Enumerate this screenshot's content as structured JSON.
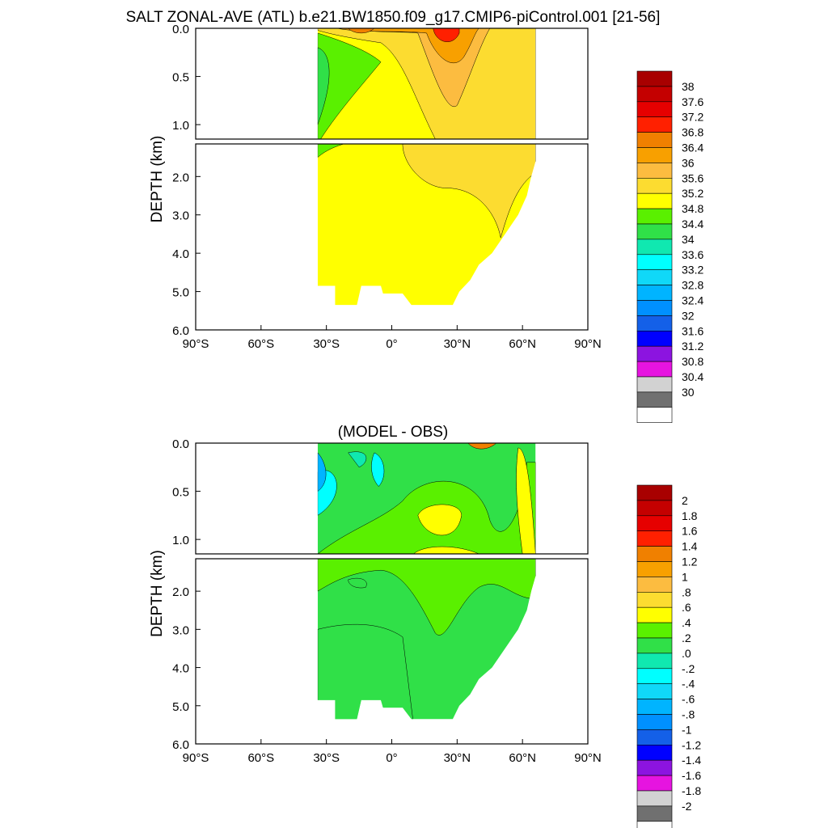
{
  "title": "SALT ZONAL-AVE (ATL) b.e21.BW1850.f09_g17.CMIP6-piControl.001 [21-56]",
  "chart_data": [
    {
      "type": "contour",
      "title": "SALT ZONAL-AVE (ATL) b.e21.BW1850.f09_g17.CMIP6-piControl.001 [21-56]",
      "xlabel": "",
      "ylabel": "DEPTH (km)",
      "xlim": [
        -90,
        90
      ],
      "x_ticks": [
        -90,
        -60,
        -30,
        0,
        30,
        60,
        90
      ],
      "x_tick_labels": [
        "90°S",
        "60°S",
        "30°S",
        "0°",
        "30°N",
        "60°N",
        "90°N"
      ],
      "upper_ylim": [
        0.0,
        1.15
      ],
      "upper_y_ticks": [
        0.0,
        0.5,
        1.0
      ],
      "upper_y_tick_labels": [
        "0.0",
        "0.5",
        "1.0"
      ],
      "lower_ylim": [
        1.15,
        6.0
      ],
      "lower_y_ticks": [
        2.0,
        3.0,
        4.0,
        5.0,
        6.0
      ],
      "lower_y_tick_labels": [
        "2.0",
        "3.0",
        "4.0",
        "5.0",
        "6.0"
      ],
      "ocean_lat_range": [
        -34,
        66
      ],
      "colorbar_labels": [
        "38",
        "37.6",
        "37.2",
        "36.8",
        "36.4",
        "36",
        "35.6",
        "35.2",
        "34.8",
        "34.4",
        "34",
        "33.6",
        "33.2",
        "32.8",
        "32.4",
        "32",
        "31.6",
        "31.2",
        "30.8",
        "30.4",
        "30"
      ],
      "colorbar_colors": [
        "#a80000",
        "#c40000",
        "#e60000",
        "#ff2000",
        "#f08000",
        "#f8a000",
        "#fcbc40",
        "#fcdc30",
        "#ffff00",
        "#5af000",
        "#30e048",
        "#10e8b0",
        "#00ffff",
        "#10d8f8",
        "#00b4ff",
        "#0090ff",
        "#1460e8",
        "#0000ff",
        "#8c14e0",
        "#e614e0",
        "#d2d2d2",
        "#707070",
        "#ffffff"
      ],
      "regions": [
        {
          "salinity_range": "34.8-35.2",
          "location": "most of the basin below 1 km",
          "color": "#ffff00"
        },
        {
          "salinity_range": "34.4-34.8",
          "location": "Southern upper ocean (~0.2-1.0 km near 30°S)",
          "color": "#5af000"
        },
        {
          "salinity_range": "35.6-37.2",
          "location": "subtropical surface maxima near 15°S and 25°N",
          "color": "#f8a000"
        },
        {
          "salinity_range": "35.2-35.6",
          "location": "Northern subtropics and Mediterranean outflow layer 1-2.5 km",
          "color": "#fcdc30"
        }
      ]
    },
    {
      "type": "contour",
      "title": "(MODEL - OBS)",
      "xlabel": "",
      "ylabel": "DEPTH (km)",
      "xlim": [
        -90,
        90
      ],
      "x_ticks": [
        -90,
        -60,
        -30,
        0,
        30,
        60,
        90
      ],
      "x_tick_labels": [
        "90°S",
        "60°S",
        "30°S",
        "0°",
        "30°N",
        "60°N",
        "90°N"
      ],
      "upper_ylim": [
        0.0,
        1.15
      ],
      "upper_y_ticks": [
        0.0,
        0.5,
        1.0
      ],
      "upper_y_tick_labels": [
        "0.0",
        "0.5",
        "1.0"
      ],
      "lower_ylim": [
        1.15,
        6.0
      ],
      "lower_y_ticks": [
        2.0,
        3.0,
        4.0,
        5.0,
        6.0
      ],
      "lower_y_tick_labels": [
        "2.0",
        "3.0",
        "4.0",
        "5.0",
        "6.0"
      ],
      "ocean_lat_range": [
        -34,
        66
      ],
      "colorbar_labels": [
        "2",
        "1.8",
        "1.6",
        "1.4",
        "1.2",
        "1",
        ".8",
        ".6",
        ".4",
        ".2",
        ".0",
        "-.2",
        "-.4",
        "-.6",
        "-.8",
        "-1",
        "-1.2",
        "-1.4",
        "-1.6",
        "-1.8",
        "-2"
      ],
      "colorbar_colors": [
        "#a80000",
        "#c40000",
        "#e60000",
        "#ff2000",
        "#f08000",
        "#f8a000",
        "#fcbc40",
        "#fcdc30",
        "#ffff00",
        "#5af000",
        "#30e048",
        "#10e8b0",
        "#00ffff",
        "#10d8f8",
        "#00b4ff",
        "#0090ff",
        "#1460e8",
        "#0000ff",
        "#8c14e0",
        "#e614e0",
        "#d2d2d2",
        "#707070",
        "#ffffff"
      ],
      "regions": [
        {
          "difference_range": "0.0-0.2",
          "location": "most of the deep basin",
          "color": "#30e048"
        },
        {
          "difference_range": "0.2-0.4",
          "location": "Northern mid-depths 0.3-2.5 km",
          "color": "#5af000"
        },
        {
          "difference_range": "0.4-0.6",
          "location": "around 20°N, 0.6-1.0 km and 60°N upper ocean",
          "color": "#ffff00"
        },
        {
          "difference_range": "-0.8 to -0.2",
          "location": "Southern upper ocean near 30°S",
          "color": "#10d8f8"
        }
      ]
    }
  ]
}
